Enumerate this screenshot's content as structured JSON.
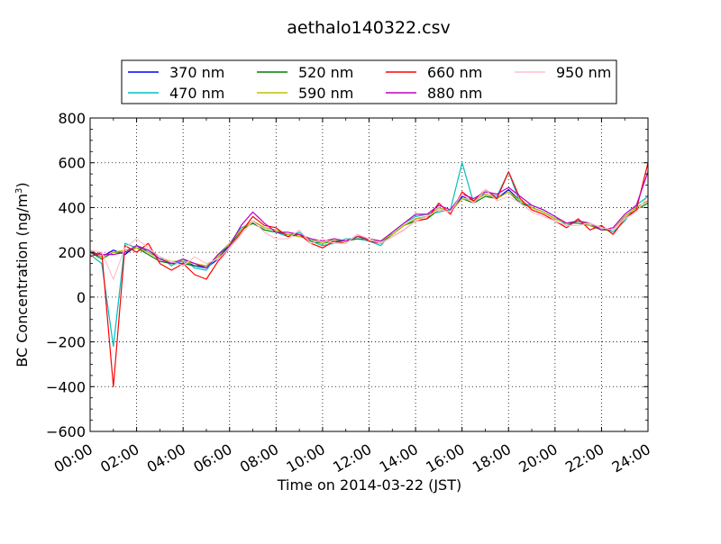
{
  "chart_data": {
    "type": "line",
    "title": "aethalo140322.csv",
    "xlabel": "Time on 2014-03-22 (JST)",
    "ylabel": "BC Concentration (ng/m",
    "ylabel_superscript": "3",
    "ylabel_close": ")",
    "xlim": [
      "00:00",
      "24:00"
    ],
    "ylim": [
      -600,
      800
    ],
    "grid": true,
    "grid_style": "dotted",
    "legend_position": "top",
    "x_tick_labels": [
      "00:00",
      "02:00",
      "04:00",
      "06:00",
      "08:00",
      "10:00",
      "12:00",
      "14:00",
      "16:00",
      "18:00",
      "20:00",
      "22:00",
      "24:00"
    ],
    "y_tick_labels": [
      "800",
      "600",
      "400",
      "200",
      "0",
      "−200",
      "−400",
      "−600"
    ],
    "y_tick_values": [
      800,
      600,
      400,
      200,
      0,
      -200,
      -400,
      -600
    ],
    "x_hours": [
      0,
      0.5,
      1,
      1.5,
      2,
      2.5,
      3,
      3.5,
      4,
      4.5,
      5,
      5.5,
      6,
      6.5,
      7,
      7.5,
      8,
      8.5,
      9,
      9.5,
      10,
      10.5,
      11,
      11.5,
      12,
      12.5,
      13,
      13.5,
      14,
      14.5,
      15,
      15.5,
      16,
      16.5,
      17,
      17.5,
      18,
      18.5,
      19,
      19.5,
      20,
      20.5,
      21,
      21.5,
      22,
      22.5,
      23,
      23.5,
      24
    ],
    "series": [
      {
        "name": "370 nm",
        "color": "#0000ff",
        "values": [
          200,
          180,
          210,
          190,
          230,
          200,
          170,
          150,
          160,
          140,
          130,
          170,
          230,
          300,
          340,
          310,
          300,
          280,
          270,
          260,
          240,
          260,
          250,
          270,
          260,
          250,
          280,
          320,
          350,
          360,
          400,
          380,
          450,
          430,
          460,
          440,
          480,
          430,
          400,
          380,
          350,
          330,
          340,
          320,
          310,
          300,
          360,
          400,
          430
        ]
      },
      {
        "name": "470 nm",
        "color": "#00bfbf",
        "values": [
          190,
          150,
          -220,
          240,
          220,
          210,
          180,
          140,
          170,
          130,
          120,
          190,
          240,
          310,
          330,
          300,
          290,
          270,
          290,
          250,
          230,
          240,
          260,
          260,
          250,
          230,
          290,
          330,
          360,
          370,
          380,
          390,
          600,
          420,
          470,
          450,
          560,
          420,
          410,
          390,
          360,
          320,
          340,
          330,
          310,
          290,
          340,
          410,
          450
        ]
      },
      {
        "name": "520 nm",
        "color": "#007f00",
        "values": [
          200,
          170,
          200,
          200,
          220,
          190,
          160,
          150,
          150,
          140,
          140,
          180,
          230,
          300,
          330,
          300,
          290,
          280,
          280,
          250,
          240,
          250,
          250,
          260,
          260,
          240,
          280,
          320,
          340,
          350,
          390,
          380,
          440,
          420,
          450,
          440,
          470,
          420,
          400,
          380,
          350,
          330,
          330,
          320,
          300,
          300,
          350,
          390,
          420
        ]
      },
      {
        "name": "590 nm",
        "color": "#bfbf00",
        "values": [
          210,
          180,
          200,
          210,
          220,
          200,
          170,
          160,
          160,
          150,
          140,
          180,
          240,
          300,
          340,
          310,
          300,
          280,
          270,
          260,
          240,
          260,
          250,
          270,
          260,
          250,
          280,
          320,
          350,
          360,
          400,
          380,
          440,
          430,
          460,
          440,
          470,
          430,
          400,
          380,
          350,
          330,
          340,
          320,
          310,
          300,
          360,
          400,
          430
        ]
      },
      {
        "name": "660 nm",
        "color": "#ff0000",
        "values": [
          180,
          200,
          -400,
          230,
          200,
          240,
          150,
          120,
          150,
          100,
          80,
          160,
          220,
          290,
          360,
          320,
          310,
          270,
          280,
          240,
          220,
          250,
          240,
          280,
          250,
          240,
          270,
          300,
          340,
          350,
          420,
          370,
          470,
          430,
          480,
          440,
          560,
          440,
          390,
          370,
          340,
          310,
          350,
          300,
          320,
          280,
          350,
          390,
          600
        ]
      },
      {
        "name": "880 nm",
        "color": "#bf00bf",
        "values": [
          200,
          190,
          190,
          200,
          230,
          210,
          170,
          150,
          170,
          150,
          130,
          190,
          230,
          320,
          380,
          330,
          290,
          290,
          280,
          260,
          250,
          260,
          250,
          270,
          260,
          250,
          290,
          330,
          370,
          370,
          410,
          390,
          460,
          440,
          470,
          460,
          490,
          450,
          410,
          390,
          360,
          330,
          340,
          330,
          300,
          310,
          370,
          410,
          560
        ]
      },
      {
        "name": "950 nm",
        "color": "#ffc0cb",
        "values": [
          210,
          200,
          80,
          220,
          260,
          220,
          180,
          160,
          140,
          180,
          150,
          170,
          220,
          280,
          340,
          290,
          260,
          260,
          300,
          240,
          260,
          240,
          240,
          280,
          260,
          240,
          270,
          300,
          340,
          360,
          390,
          380,
          460,
          420,
          480,
          430,
          450,
          420,
          380,
          360,
          340,
          320,
          320,
          330,
          310,
          300,
          350,
          380,
          450
        ]
      }
    ]
  }
}
